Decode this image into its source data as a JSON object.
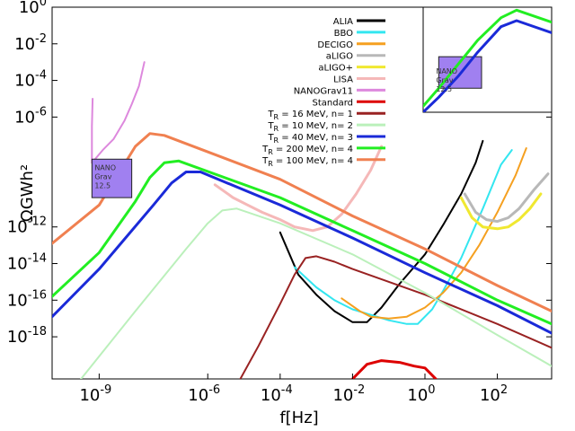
{
  "chart_data": {
    "type": "line",
    "title": "",
    "xlabel": "f[Hz]",
    "ylabel": "ΩGWh²",
    "xscale": "log",
    "yscale": "log",
    "xlim_log10": [
      -10.3,
      3.5
    ],
    "ylim_log10": [
      -20.3,
      0
    ],
    "x_ticks": [
      {
        "exp": -9,
        "base": "10",
        "label": "-9"
      },
      {
        "exp": -6,
        "base": "10",
        "label": "-6"
      },
      {
        "exp": -4,
        "base": "10",
        "label": "-4"
      },
      {
        "exp": -2,
        "base": "10",
        "label": "-2"
      },
      {
        "exp": 0,
        "base": "10",
        "label": "0"
      },
      {
        "exp": 2,
        "base": "10",
        "label": "2"
      }
    ],
    "y_ticks": [
      {
        "exp": 0,
        "base": "10",
        "label": "0"
      },
      {
        "exp": -2,
        "base": "10",
        "label": "-2"
      },
      {
        "exp": -4,
        "base": "10",
        "label": "-4"
      },
      {
        "exp": -6,
        "base": "10",
        "label": "-6"
      },
      {
        "exp": -12,
        "base": "10",
        "label": "-12"
      },
      {
        "exp": -14,
        "base": "10",
        "label": "-14"
      },
      {
        "exp": -16,
        "base": "10",
        "label": "-16"
      },
      {
        "exp": -18,
        "base": "10",
        "label": "-18"
      }
    ],
    "legend_position": "top-right",
    "legend": [
      {
        "label": "ALIA",
        "color": "#000000"
      },
      {
        "label": "BBO",
        "color": "#33e6f0"
      },
      {
        "label": "DECIGO",
        "color": "#f5a020"
      },
      {
        "label": "aLIGO",
        "color": "#b8b8b8"
      },
      {
        "label": "aLIGO+",
        "color": "#f0e830"
      },
      {
        "label": "LISA",
        "color": "#f5b8b8"
      },
      {
        "label": "NANOGrav11",
        "color": "#dd88dd"
      },
      {
        "label": "Standard",
        "color": "#dd0000"
      },
      {
        "label": "T_R = 16 MeV, n= 1",
        "color": "#992222",
        "sym": "T",
        "sub": "R",
        "rest": " = 16 MeV, n= 1"
      },
      {
        "label": "T_R = 10 MeV, n= 2",
        "color": "#bbf0bb",
        "sym": "T",
        "sub": "R",
        "rest": " = 10 MeV, n= 2"
      },
      {
        "label": "T_R = 40 MeV, n= 3",
        "color": "#1a2ad8",
        "sym": "T",
        "sub": "R",
        "rest": " = 40 MeV, n= 3"
      },
      {
        "label": "T_R = 200 MeV, n= 4",
        "color": "#22ee22",
        "sym": "T",
        "sub": "R",
        "rest": " = 200 MeV, n= 4"
      },
      {
        "label": "T_R = 100 MeV, n= 4",
        "color": "#f08050",
        "sym": "T",
        "sub": "R",
        "rest": " = 100 MeV, n= 4"
      }
    ],
    "series": [
      {
        "name": "ALIA",
        "color": "#000000",
        "width": 2,
        "points": [
          [
            -4,
            -12.3
          ],
          [
            -3.5,
            -14.6
          ],
          [
            -3,
            -15.7
          ],
          [
            -2.5,
            -16.6
          ],
          [
            -2,
            -17.2
          ],
          [
            -1.6,
            -17.2
          ],
          [
            -1.2,
            -16.4
          ],
          [
            -0.7,
            -15.1
          ],
          [
            0,
            -13.5
          ],
          [
            0.5,
            -11.9
          ],
          [
            1,
            -10.2
          ],
          [
            1.4,
            -8.5
          ],
          [
            1.6,
            -7.3
          ]
        ]
      },
      {
        "name": "BBO",
        "color": "#33e6f0",
        "width": 2,
        "points": [
          [
            -3.6,
            -14.2
          ],
          [
            -3,
            -15.3
          ],
          [
            -2.5,
            -16
          ],
          [
            -2,
            -16.5
          ],
          [
            -1.5,
            -16.8
          ],
          [
            -1,
            -17.1
          ],
          [
            -0.5,
            -17.3
          ],
          [
            -0.2,
            -17.3
          ],
          [
            0.2,
            -16.5
          ],
          [
            0.5,
            -15.5
          ],
          [
            1,
            -13.7
          ],
          [
            1.6,
            -11
          ],
          [
            2.1,
            -8.6
          ],
          [
            2.4,
            -7.8
          ]
        ]
      },
      {
        "name": "DECIGO",
        "color": "#f5a020",
        "width": 2,
        "points": [
          [
            -2.3,
            -15.9
          ],
          [
            -1.8,
            -16.6
          ],
          [
            -1.5,
            -16.9
          ],
          [
            -1,
            -17
          ],
          [
            -0.5,
            -16.9
          ],
          [
            0,
            -16.4
          ],
          [
            0.5,
            -15.6
          ],
          [
            1,
            -14.5
          ],
          [
            1.5,
            -13
          ],
          [
            2,
            -11.2
          ],
          [
            2.5,
            -9.2
          ],
          [
            2.8,
            -7.7
          ]
        ]
      },
      {
        "name": "aLIGO",
        "color": "#b8b8b8",
        "width": 3,
        "points": [
          [
            1.1,
            -10.2
          ],
          [
            1.4,
            -11.2
          ],
          [
            1.7,
            -11.6
          ],
          [
            2,
            -11.7
          ],
          [
            2.3,
            -11.5
          ],
          [
            2.6,
            -11
          ],
          [
            3,
            -10
          ],
          [
            3.4,
            -9.1
          ]
        ]
      },
      {
        "name": "aLIGO+",
        "color": "#f0e830",
        "width": 3,
        "points": [
          [
            1,
            -10.4
          ],
          [
            1.3,
            -11.5
          ],
          [
            1.6,
            -12
          ],
          [
            2,
            -12.1
          ],
          [
            2.3,
            -12
          ],
          [
            2.6,
            -11.6
          ],
          [
            2.9,
            -11
          ],
          [
            3.2,
            -10.2
          ]
        ]
      },
      {
        "name": "LISA",
        "color": "#f5b8b8",
        "width": 3,
        "points": [
          [
            -5.8,
            -9.7
          ],
          [
            -5.3,
            -10.4
          ],
          [
            -4.9,
            -10.8
          ],
          [
            -4.5,
            -11.2
          ],
          [
            -4,
            -11.6
          ],
          [
            -3.6,
            -12
          ],
          [
            -3.1,
            -12.2
          ],
          [
            -2.7,
            -12
          ],
          [
            -2.3,
            -11.3
          ],
          [
            -1.9,
            -10.2
          ],
          [
            -1.5,
            -8.9
          ],
          [
            -1.2,
            -7.6
          ]
        ]
      },
      {
        "name": "NANOGrav11",
        "color": "#dd88dd",
        "width": 2,
        "points": [
          [
            -9.2,
            -8.5
          ],
          [
            -8.9,
            -7.8
          ],
          [
            -8.6,
            -7.2
          ],
          [
            -8.3,
            -6.2
          ],
          [
            -8.1,
            -5.3
          ],
          [
            -7.9,
            -4.3
          ],
          [
            -7.75,
            -3
          ]
        ]
      },
      {
        "name": "NANOGrav11",
        "color": "#dd88dd",
        "width": 2,
        "points": [
          [
            -9.2,
            -8.5
          ],
          [
            -9.2,
            -6.5
          ],
          [
            -9.18,
            -5
          ]
        ]
      },
      {
        "name": "Standard",
        "color": "#dd0000",
        "width": 3,
        "points": [
          [
            -2,
            -20.3
          ],
          [
            -1.6,
            -19.5
          ],
          [
            -1.2,
            -19.3
          ],
          [
            -0.7,
            -19.4
          ],
          [
            -0.3,
            -19.6
          ],
          [
            0,
            -19.7
          ],
          [
            0.3,
            -20.3
          ]
        ]
      },
      {
        "name": "T_R = 16 MeV, n= 1",
        "color": "#992222",
        "width": 2,
        "points": [
          [
            -5.1,
            -20.3
          ],
          [
            -4.6,
            -18.5
          ],
          [
            -4,
            -16.2
          ],
          [
            -3.6,
            -14.6
          ],
          [
            -3.3,
            -13.7
          ],
          [
            -3,
            -13.6
          ],
          [
            -2.5,
            -13.9
          ],
          [
            -2,
            -14.3
          ],
          [
            0,
            -15.7
          ],
          [
            2,
            -17.3
          ],
          [
            3.5,
            -18.6
          ]
        ]
      },
      {
        "name": "T_R = 10 MeV, n= 2",
        "color": "#bbf0bb",
        "width": 2,
        "points": [
          [
            -9.5,
            -20.3
          ],
          [
            -8,
            -16.6
          ],
          [
            -6.6,
            -13.2
          ],
          [
            -6,
            -11.8
          ],
          [
            -5.6,
            -11.1
          ],
          [
            -5.2,
            -11
          ],
          [
            -4,
            -11.8
          ],
          [
            -2,
            -13.5
          ],
          [
            0,
            -15.6
          ],
          [
            2,
            -17.9
          ],
          [
            3.5,
            -19.6
          ]
        ]
      },
      {
        "name": "T_R = 40 MeV, n= 3",
        "color": "#1a2ad8",
        "width": 3,
        "points": [
          [
            -10.3,
            -16.9
          ],
          [
            -9,
            -14.3
          ],
          [
            -7.5,
            -10.8
          ],
          [
            -7,
            -9.6
          ],
          [
            -6.6,
            -9
          ],
          [
            -6.2,
            -9
          ],
          [
            -4,
            -10.8
          ],
          [
            -2,
            -12.6
          ],
          [
            0,
            -14.5
          ],
          [
            2,
            -16.3
          ],
          [
            3.5,
            -17.8
          ]
        ]
      },
      {
        "name": "T_R = 200 MeV, n= 4",
        "color": "#22ee22",
        "width": 3,
        "points": [
          [
            -10.3,
            -15.8
          ],
          [
            -9,
            -13.4
          ],
          [
            -8,
            -10.6
          ],
          [
            -7.6,
            -9.3
          ],
          [
            -7.2,
            -8.5
          ],
          [
            -6.8,
            -8.4
          ],
          [
            -4,
            -10.4
          ],
          [
            -2,
            -12.2
          ],
          [
            0,
            -14
          ],
          [
            2,
            -16
          ],
          [
            3.5,
            -17.3
          ]
        ]
      },
      {
        "name": "T_R = 100 MeV, n= 4",
        "color": "#f08050",
        "width": 3,
        "points": [
          [
            -10.3,
            -12.9
          ],
          [
            -9,
            -10.8
          ],
          [
            -8.5,
            -9.2
          ],
          [
            -8,
            -7.6
          ],
          [
            -7.6,
            -6.9
          ],
          [
            -7.2,
            -7
          ],
          [
            -4,
            -9.4
          ],
          [
            -2,
            -11.4
          ],
          [
            0,
            -13.2
          ],
          [
            2,
            -15.2
          ],
          [
            3.5,
            -16.6
          ]
        ]
      }
    ],
    "nanograv_box": {
      "label_lines": [
        "NANO",
        "Grav",
        "12.5"
      ],
      "fill": "#a080f0",
      "x_log10": [
        -9.2,
        -8.1
      ],
      "y_log10": [
        -10.4,
        -8.3
      ]
    },
    "inset": {
      "xlim_log10": [
        -9.6,
        -6.3
      ],
      "ylim_log10": [
        -12,
        -5
      ],
      "box": {
        "x_log10": [
          -9.2,
          -8.1
        ],
        "y_log10": [
          -10.4,
          -8.3
        ],
        "label_lines": [
          "NANO",
          "Grav",
          "12.5"
        ],
        "fill": "#a080f0"
      },
      "series": [
        {
          "name": "T_R = 40 MeV, n= 3 (inset)",
          "color": "#1a2ad8",
          "width": 3,
          "points": [
            [
              -9.6,
              -12
            ],
            [
              -9.2,
              -11
            ],
            [
              -8.7,
              -9.6
            ],
            [
              -8.2,
              -8
            ],
            [
              -7.6,
              -6.3
            ],
            [
              -7.2,
              -5.9
            ],
            [
              -6.3,
              -6.7
            ]
          ]
        },
        {
          "name": "T_R = 200 MeV, n= 4 (inset)",
          "color": "#22ee22",
          "width": 3,
          "points": [
            [
              -9.6,
              -11.6
            ],
            [
              -9.2,
              -10.4
            ],
            [
              -8.7,
              -8.8
            ],
            [
              -8.2,
              -7.2
            ],
            [
              -7.6,
              -5.7
            ],
            [
              -7.2,
              -5.2
            ],
            [
              -6.3,
              -6
            ]
          ]
        }
      ]
    }
  }
}
